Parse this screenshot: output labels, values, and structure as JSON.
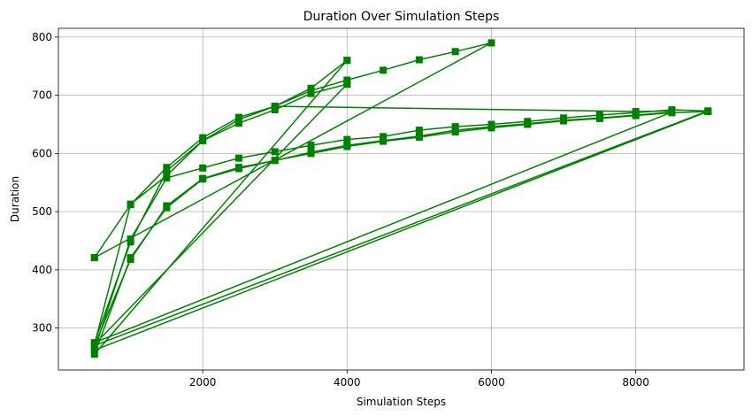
{
  "chart_data": {
    "type": "line",
    "title": "Duration Over Simulation Steps",
    "xlabel": "Simulation Steps",
    "ylabel": "Duration",
    "xlim": [
      0,
      9500
    ],
    "ylim": [
      228,
      815
    ],
    "xticks": [
      2000,
      4000,
      6000,
      8000
    ],
    "yticks": [
      300,
      400,
      500,
      600,
      700,
      800
    ],
    "grid": true,
    "color": "#008000",
    "marker": "square",
    "series": [
      {
        "points": [
          [
            500,
            421
          ],
          [
            1000,
            512
          ],
          [
            1500,
            576
          ],
          [
            2000,
            627
          ],
          [
            2500,
            662
          ],
          [
            3000,
            681
          ],
          [
            3500,
            712
          ],
          [
            4000,
            760
          ]
        ]
      },
      {
        "points": [
          [
            4000,
            760
          ],
          [
            500,
            255
          ],
          [
            1000,
            421
          ],
          [
            1500,
            507
          ],
          [
            2000,
            556
          ],
          [
            2500,
            574
          ],
          [
            3000,
            588
          ],
          [
            3500,
            600
          ],
          [
            4000,
            612
          ],
          [
            4500,
            621
          ],
          [
            5000,
            628
          ],
          [
            5500,
            637
          ],
          [
            6000,
            644
          ],
          [
            6500,
            650
          ],
          [
            7000,
            656
          ],
          [
            7500,
            660
          ],
          [
            8000,
            665
          ],
          [
            8500,
            670
          ],
          [
            9000,
            672
          ]
        ]
      },
      {
        "points": [
          [
            9000,
            672
          ],
          [
            500,
            262
          ],
          [
            1000,
            453
          ],
          [
            1500,
            558
          ],
          [
            2000,
            575
          ],
          [
            2500,
            592
          ],
          [
            3000,
            603
          ],
          [
            3500,
            614
          ],
          [
            4000,
            624
          ],
          [
            4500,
            629
          ],
          [
            5000,
            640
          ],
          [
            5500,
            646
          ],
          [
            6000,
            650
          ],
          [
            6500,
            655
          ],
          [
            7000,
            661
          ],
          [
            7500,
            666
          ],
          [
            8000,
            670
          ],
          [
            8500,
            675
          ],
          [
            9000,
            673
          ]
        ]
      },
      {
        "points": [
          [
            9000,
            673
          ],
          [
            500,
            270
          ],
          [
            1000,
            418
          ],
          [
            1500,
            510
          ],
          [
            2000,
            557
          ],
          [
            2500,
            576
          ],
          [
            3000,
            588
          ],
          [
            3500,
            602
          ],
          [
            4000,
            614
          ],
          [
            4500,
            622
          ],
          [
            5000,
            630
          ],
          [
            5500,
            640
          ],
          [
            6000,
            646
          ],
          [
            6500,
            651
          ],
          [
            7000,
            657
          ],
          [
            7500,
            661
          ],
          [
            8000,
            666
          ],
          [
            8500,
            671
          ]
        ]
      },
      {
        "points": [
          [
            8500,
            671
          ],
          [
            500,
            275
          ],
          [
            1000,
            448
          ],
          [
            1500,
            570
          ],
          [
            2000,
            622
          ],
          [
            2500,
            652
          ],
          [
            3000,
            675
          ],
          [
            3500,
            703
          ],
          [
            4000,
            719
          ]
        ]
      },
      {
        "points": [
          [
            4000,
            719
          ],
          [
            500,
            272
          ],
          [
            1000,
            513
          ],
          [
            1500,
            562
          ],
          [
            2000,
            622
          ],
          [
            2500,
            658
          ],
          [
            3000,
            681
          ],
          [
            3500,
            708
          ],
          [
            4000,
            726
          ],
          [
            4500,
            743
          ],
          [
            5000,
            761
          ],
          [
            5500,
            775
          ],
          [
            6000,
            790
          ]
        ]
      },
      {
        "points": [
          [
            6000,
            790
          ],
          [
            500,
            421
          ]
        ]
      },
      {
        "points": [
          [
            3000,
            681
          ],
          [
            8000,
            672
          ],
          [
            8500,
            673
          ]
        ]
      }
    ]
  }
}
